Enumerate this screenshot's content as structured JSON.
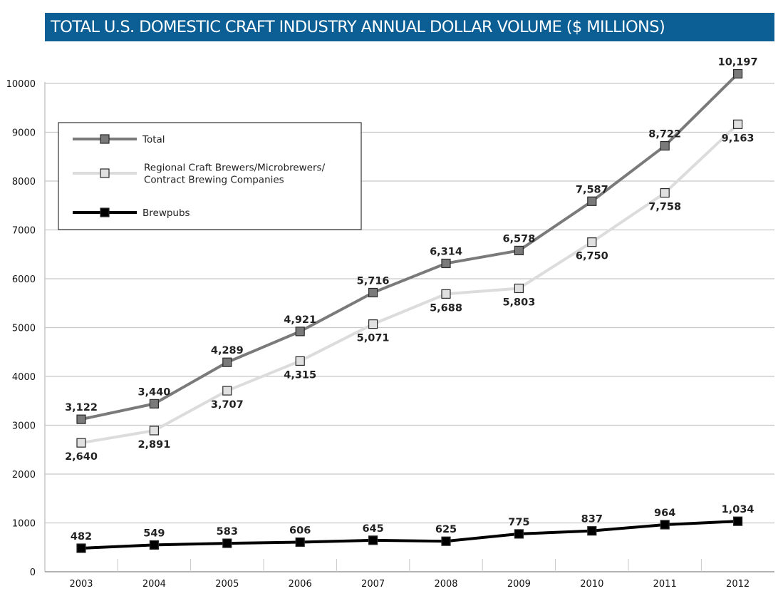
{
  "chart_data": {
    "type": "line",
    "title": "TOTAL U.S. DOMESTIC CRAFT INDUSTRY ANNUAL DOLLAR VOLUME ($ MILLIONS)",
    "xlabel": "",
    "ylabel": "",
    "categories": [
      "2003",
      "2004",
      "2005",
      "2006",
      "2007",
      "2008",
      "2009",
      "2010",
      "2011",
      "2012"
    ],
    "ylim": [
      0,
      10000
    ],
    "yticks": [
      0,
      1000,
      2000,
      3000,
      4000,
      5000,
      6000,
      7000,
      8000,
      9000,
      10000
    ],
    "grid": true,
    "legend_position": "top-left",
    "series": [
      {
        "name": "Total",
        "color": "#7a7a7a",
        "marker_fill": "#7a7a7a",
        "label_position": "above",
        "values": [
          3122,
          3440,
          4289,
          4921,
          5716,
          6314,
          6578,
          7587,
          8722,
          10197
        ],
        "labels": [
          "3,122",
          "3,440",
          "4,289",
          "4,921",
          "5,716",
          "6,314",
          "6,578",
          "7,587",
          "8,722",
          "10,197"
        ]
      },
      {
        "name": "Regional Craft Brewers/Microbrewers/ Contract Brewing Companies",
        "legend_lines": [
          "Regional Craft Brewers/Microbrewers/",
          "Contract Brewing Companies"
        ],
        "color": "#dcdcdc",
        "marker_fill": "#e0e0e0",
        "label_position": "below",
        "values": [
          2640,
          2891,
          3707,
          4315,
          5071,
          5688,
          5803,
          6750,
          7758,
          9163
        ],
        "labels": [
          "2,640",
          "2,891",
          "3,707",
          "4,315",
          "5,071",
          "5,688",
          "5,803",
          "6,750",
          "7,758",
          "9,163"
        ]
      },
      {
        "name": "Brewpubs",
        "color": "#000000",
        "marker_fill": "#000000",
        "label_position": "above",
        "values": [
          482,
          549,
          583,
          606,
          645,
          625,
          775,
          837,
          964,
          1034
        ],
        "labels": [
          "482",
          "549",
          "583",
          "606",
          "645",
          "625",
          "775",
          "837",
          "964",
          "1,034"
        ]
      }
    ]
  },
  "colors": {
    "title_bar": "#0b5f95",
    "title_text": "#ffffff",
    "gridline": "#c8c8c8"
  }
}
